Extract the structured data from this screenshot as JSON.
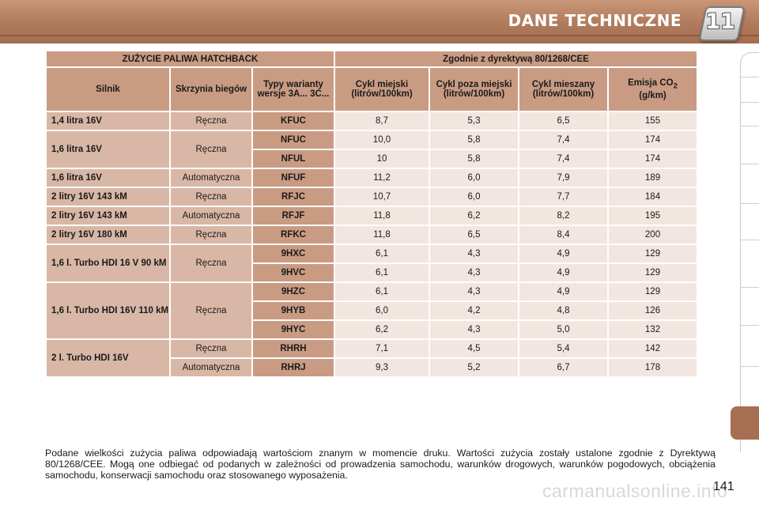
{
  "header": {
    "title": "DANE TECHNICZNE",
    "chapter": "11"
  },
  "table": {
    "section_left": "ZUŻYCIE PALIWA HATCHBACK",
    "section_right": "Zgodnie z dyrektywą 80/1268/CEE",
    "columns": {
      "engine": "Silnik",
      "gearbox": "Skrzynia biegów",
      "types": "Typy warianty wersje 3A... 3C...",
      "urban": "Cykl miejski (litrów/100km)",
      "extra": "Cykl poza miejski (litrów/100km)",
      "mixed": "Cykl mieszany (litrów/100km)",
      "co2_a": "Emisja CO",
      "co2_sub": "2",
      "co2_b": "(g/km)"
    },
    "rows": [
      {
        "engine": "1,4 litra 16V",
        "gearbox": "Ręczna",
        "code": "KFUC",
        "urban": "8,7",
        "extra": "5,3",
        "mixed": "6,5",
        "co2": "155"
      },
      {
        "engine": "1,6 litra 16V",
        "gearbox": "Ręczna",
        "code": "NFUC",
        "urban": "10,0",
        "extra": "5,8",
        "mixed": "7,4",
        "co2": "174"
      },
      {
        "code": "NFUL",
        "urban": "10",
        "extra": "5,8",
        "mixed": "7,4",
        "co2": "174"
      },
      {
        "engine": "1,6 litra 16V",
        "gearbox": "Automatyczna",
        "code": "NFUF",
        "urban": "11,2",
        "extra": "6,0",
        "mixed": "7,9",
        "co2": "189"
      },
      {
        "engine": "2 litry 16V 143 kM",
        "gearbox": "Ręczna",
        "code": "RFJC",
        "urban": "10,7",
        "extra": "6,0",
        "mixed": "7,7",
        "co2": "184"
      },
      {
        "engine": "2 litry 16V 143 kM",
        "gearbox": "Automatyczna",
        "code": "RFJF",
        "urban": "11,8",
        "extra": "6,2",
        "mixed": "8,2",
        "co2": "195"
      },
      {
        "engine": "2 litry 16V 180 kM",
        "gearbox": "Ręczna",
        "code": "RFKC",
        "urban": "11,8",
        "extra": "6,5",
        "mixed": "8,4",
        "co2": "200"
      },
      {
        "engine": "1,6 l. Turbo HDI 16 V 90 kM",
        "gearbox": "Ręczna",
        "code": "9HXC",
        "urban": "6,1",
        "extra": "4,3",
        "mixed": "4,9",
        "co2": "129"
      },
      {
        "code": "9HVC",
        "urban": "6,1",
        "extra": "4,3",
        "mixed": "4,9",
        "co2": "129"
      },
      {
        "engine": "1,6 l. Turbo HDI 16V 110 kM",
        "gearbox": "Ręczna",
        "code": "9HZC",
        "urban": "6,1",
        "extra": "4,3",
        "mixed": "4,9",
        "co2": "129"
      },
      {
        "code": "9HYB",
        "urban": "6,0",
        "extra": "4,2",
        "mixed": "4,8",
        "co2": "126"
      },
      {
        "code": "9HYC",
        "urban": "6,2",
        "extra": "4,3",
        "mixed": "5,0",
        "co2": "132"
      },
      {
        "engine": "2 l. Turbo HDI 16V",
        "gearbox": "Ręczna",
        "code": "RHRH",
        "urban": "7,1",
        "extra": "4,5",
        "mixed": "5,4",
        "co2": "142"
      },
      {
        "gearbox": "Automatyczna",
        "code": "RHRJ",
        "urban": "9,3",
        "extra": "5,2",
        "mixed": "6,7",
        "co2": "178"
      }
    ]
  },
  "footnote": "Podane wielkości zużycia paliwa odpowiadają wartościom znanym w momencie druku. Wartości zużycia zostały ustalone zgodnie z Dyrektywą 80/1268/CEE. Mogą one odbiegać od podanych w zależności od prowadzenia samochodu, warunków drogowych, warunków pogodowych, obciążenia samochodu, konserwacji samochodu oraz stosowanego wyposażenia.",
  "page_number": "141",
  "watermark": "carmanualsonline.info",
  "colors": {
    "header": "#b07a5c",
    "header_cell": "#c99b83",
    "label_cell": "#d9b7a6",
    "value_cell": "#f2e6e0"
  }
}
